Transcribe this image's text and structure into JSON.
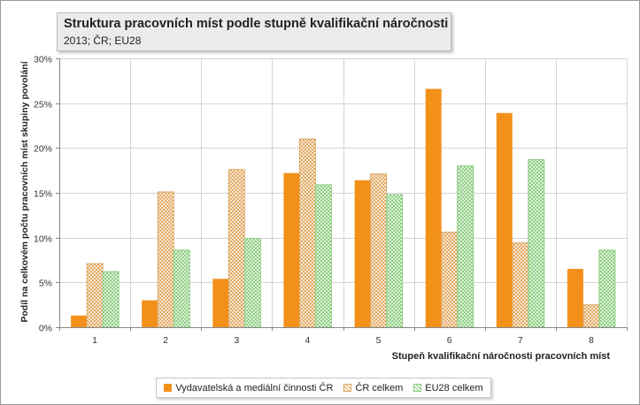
{
  "chart_data": {
    "type": "bar",
    "title": "Struktura pracovních míst podle stupně kvalifikační náročnosti",
    "subtitle": "2013; ČR; EU28",
    "xlabel": "Stupeň kvalifikační náročnosti pracovních míst",
    "ylabel": "Podíl na celkovém počtu pracovních míst skupiny povolání",
    "categories": [
      "1",
      "2",
      "3",
      "4",
      "5",
      "6",
      "7",
      "8"
    ],
    "ylim": [
      0,
      0.3
    ],
    "yticks": [
      0,
      0.05,
      0.1,
      0.15,
      0.2,
      0.25,
      0.3
    ],
    "ytick_labels": [
      "0%",
      "5%",
      "10%",
      "15%",
      "20%",
      "25%",
      "30%"
    ],
    "grid": true,
    "legend_position": "bottom",
    "series": [
      {
        "name": "Vydavatelská a mediální činnosti ČR",
        "color": "#f39019",
        "pattern": "solid",
        "values": [
          0.013,
          0.03,
          0.054,
          0.172,
          0.164,
          0.266,
          0.239,
          0.065
        ]
      },
      {
        "name": "ČR celkem",
        "color": "#e2a55a",
        "pattern": "crosshatch",
        "values": [
          0.071,
          0.151,
          0.176,
          0.21,
          0.171,
          0.106,
          0.094,
          0.025
        ]
      },
      {
        "name": "EU28 celkem",
        "color": "#86cc7a",
        "pattern": "crosshatch",
        "values": [
          0.062,
          0.086,
          0.099,
          0.159,
          0.148,
          0.18,
          0.187,
          0.086
        ]
      }
    ]
  }
}
